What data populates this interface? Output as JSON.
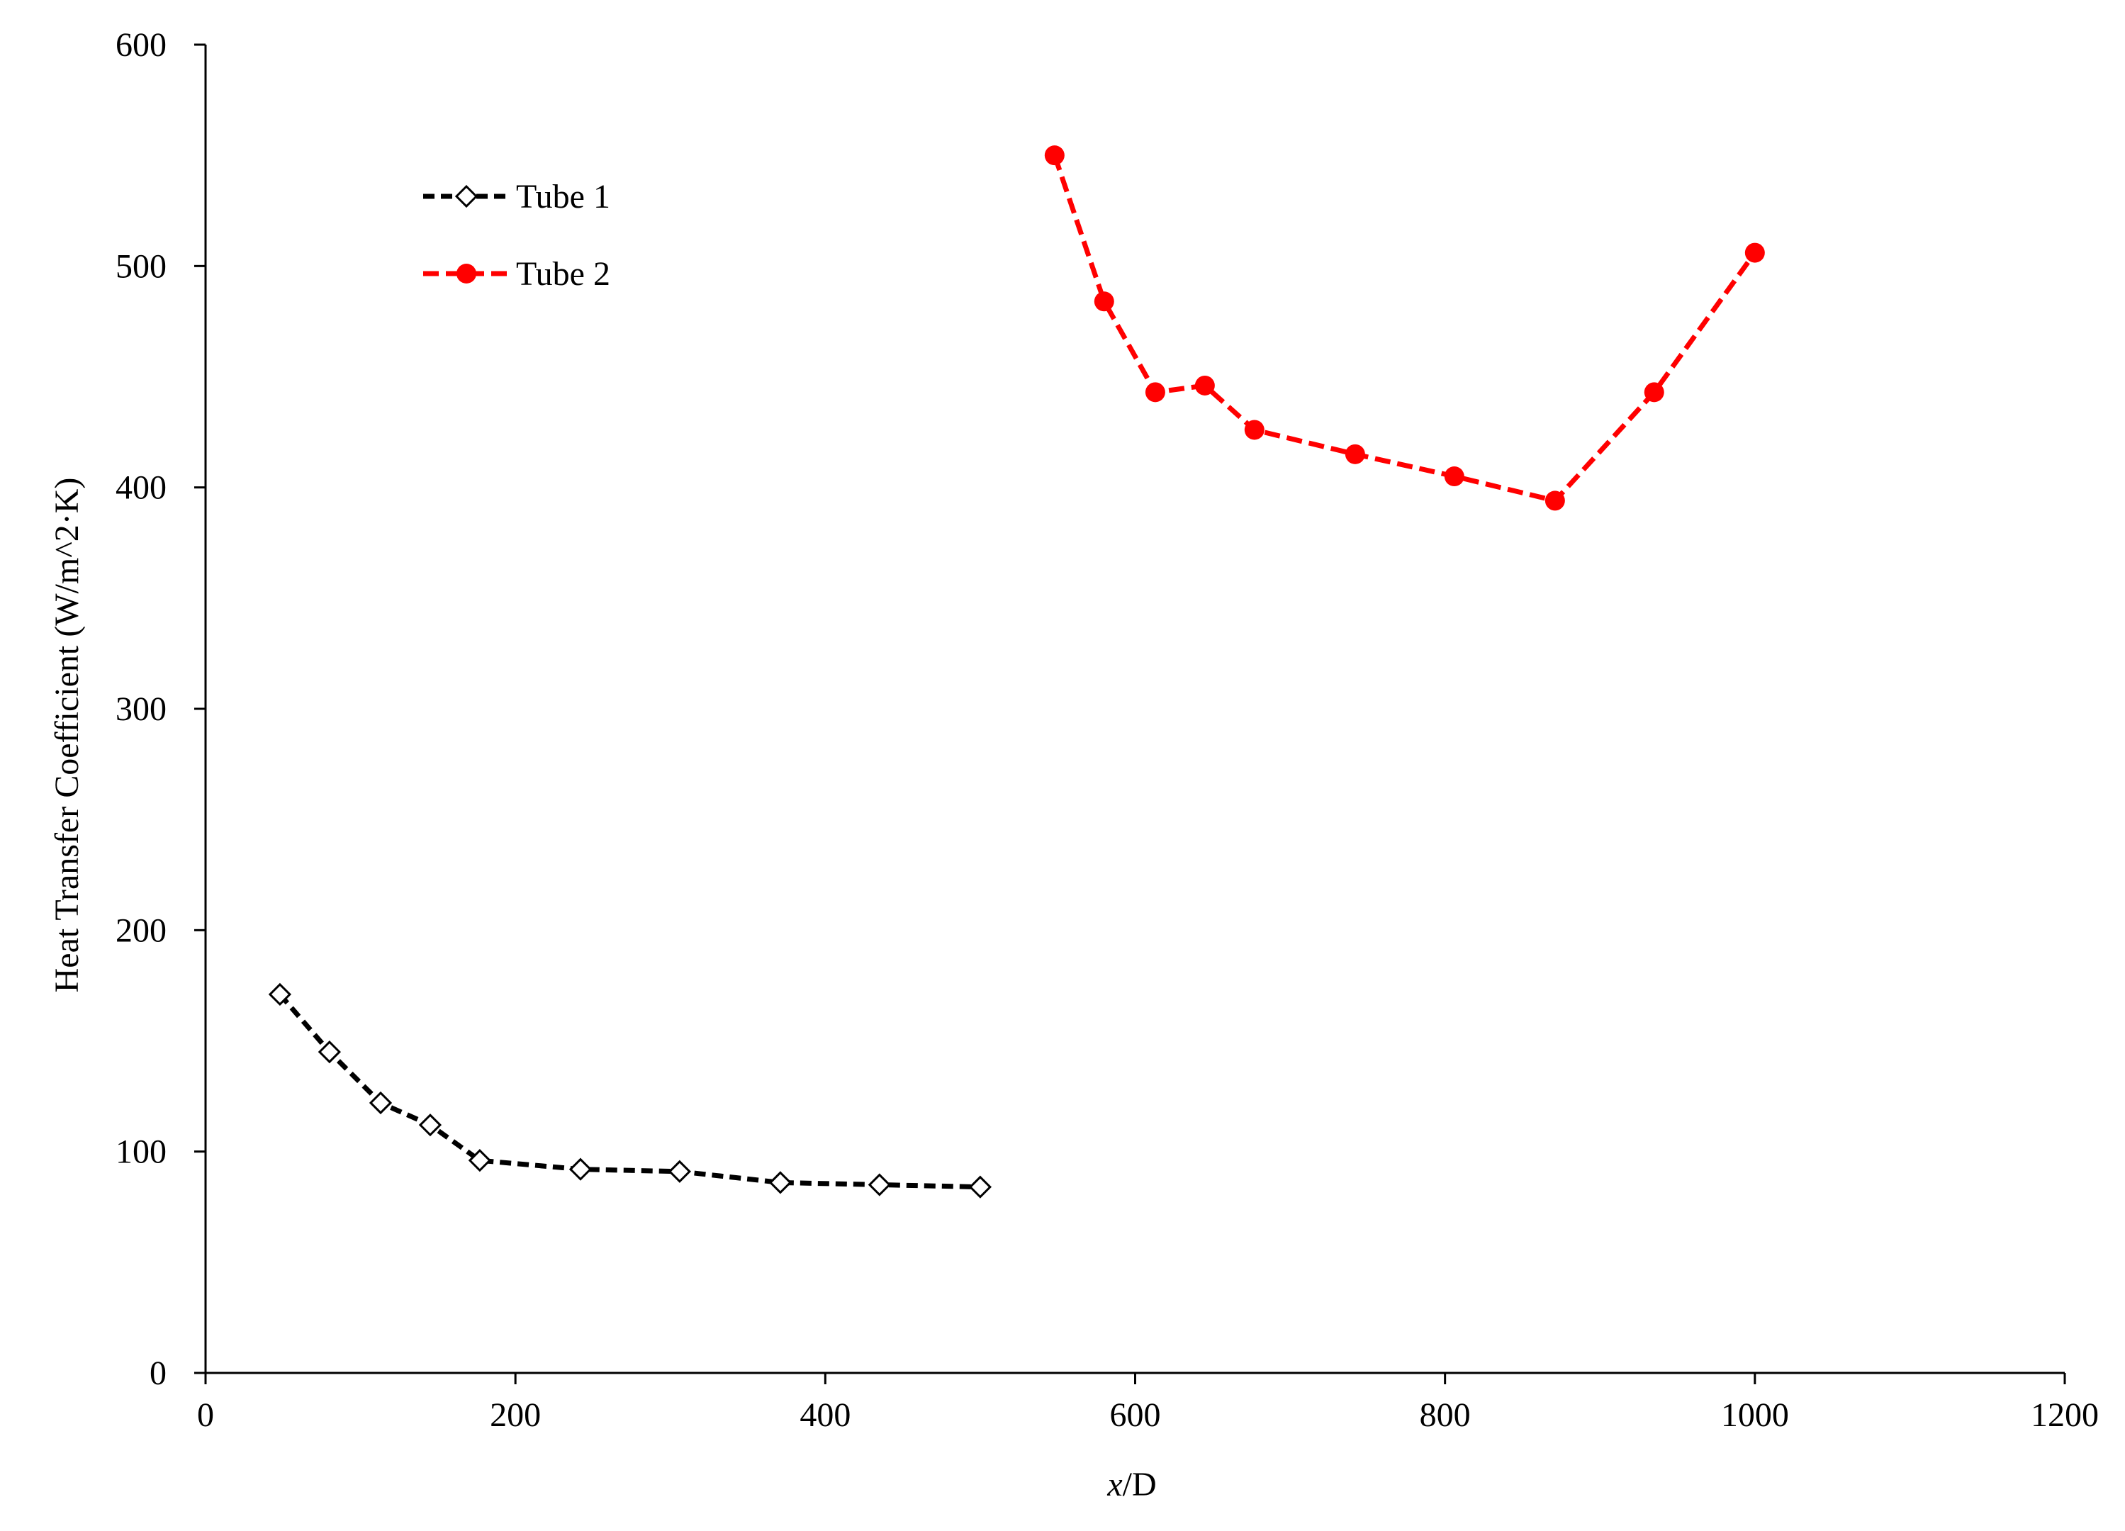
{
  "chart_data": {
    "type": "line",
    "xlabel_italic": "x",
    "xlabel_rest": "/D",
    "ylabel": "Heat Transfer Coefficient  (W/m^2·K)",
    "xlim": [
      0,
      1200
    ],
    "ylim": [
      0,
      600
    ],
    "xticks": [
      0,
      200,
      400,
      600,
      800,
      1000,
      1200
    ],
    "yticks": [
      0,
      100,
      200,
      300,
      400,
      500,
      600
    ],
    "grid": false,
    "legend_position": "top-left",
    "series": [
      {
        "name": "Tube 1",
        "color": "#000000",
        "marker": "diamond-open",
        "x": [
          48,
          80,
          113,
          145,
          177,
          242,
          306,
          371,
          435,
          500
        ],
        "y": [
          171,
          145,
          122,
          112,
          96,
          92,
          91,
          86,
          85,
          84
        ]
      },
      {
        "name": "Tube 2",
        "color": "#ff0000",
        "marker": "circle-filled",
        "x": [
          548,
          580,
          613,
          645,
          677,
          742,
          806,
          871,
          935,
          1000
        ],
        "y": [
          550,
          484,
          443,
          446,
          426,
          415,
          405,
          394,
          443,
          506
        ]
      }
    ]
  }
}
